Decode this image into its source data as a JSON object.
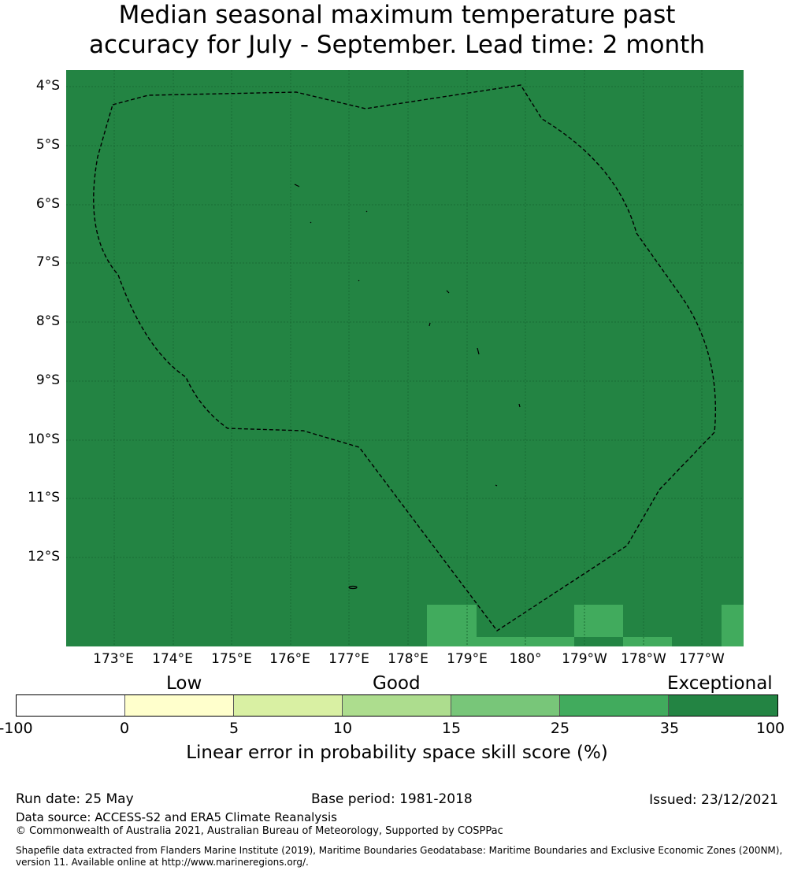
{
  "title_line1": "Median seasonal maximum temperature past",
  "title_line2": "accuracy for July - September. Lead time: 2 month",
  "map": {
    "background_color": "#238443",
    "y_labels": [
      "4°S",
      "5°S",
      "6°S",
      "7°S",
      "8°S",
      "9°S",
      "10°S",
      "11°S",
      "12°S"
    ],
    "x_labels": [
      "173°E",
      "174°E",
      "175°E",
      "176°E",
      "177°E",
      "178°E",
      "179°E",
      "180°",
      "179°W",
      "178°W",
      "177°W"
    ]
  },
  "colorbar": {
    "categories": [
      "Low",
      "Good",
      "Exceptional"
    ],
    "ticks": [
      "-100",
      "0",
      "5",
      "10",
      "15",
      "25",
      "35",
      "100"
    ],
    "colors": [
      "#ffffff",
      "#ffffcc",
      "#d9f0a3",
      "#addd8e",
      "#78c679",
      "#41ab5d",
      "#238443"
    ],
    "label": "Linear error in probability space skill score (%)"
  },
  "footer": {
    "run_date": "Run date: 25 May",
    "base_period": "Base period: 1981-2018",
    "issued": "Issued: 23/12/2021",
    "data_source": "Data source: ACCESS-S2 and ERA5 Climate Reanalysis",
    "copyright": "© Commonwealth of Australia 2021, Australian Bureau of Meteorology, Supported by COSPPac",
    "shapefile_1": "Shapefile data extracted from Flanders Marine Institute (2019), Maritime Boundaries Geodatabase: Maritime Boundaries and Exclusive Economic Zones (200NM),",
    "shapefile_2": "version 11. Available online at http://www.marineregions.org/."
  }
}
